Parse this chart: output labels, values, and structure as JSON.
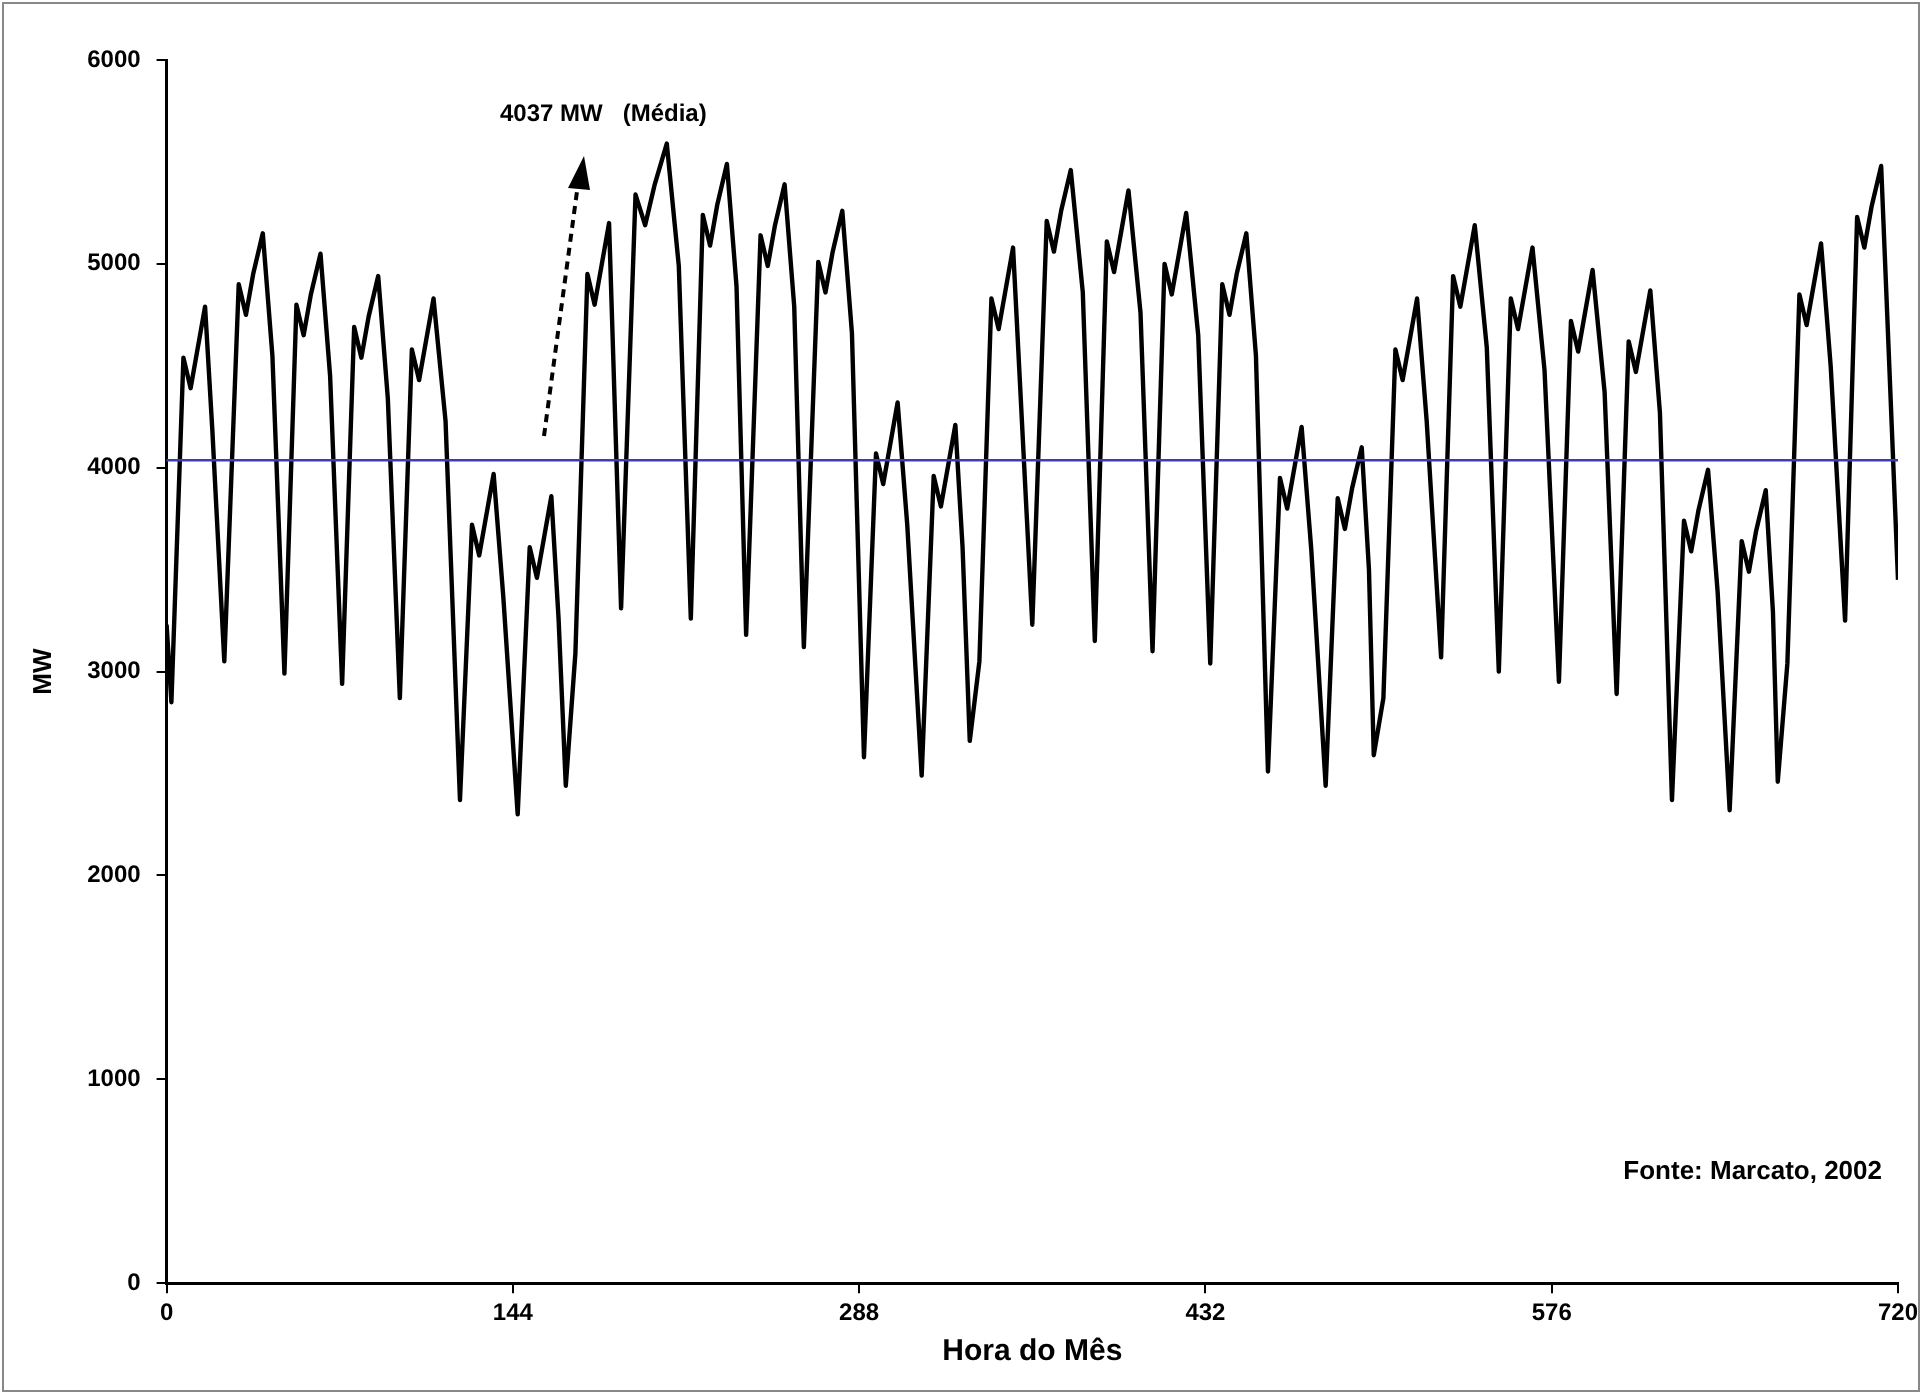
{
  "chart_data": {
    "type": "line",
    "xlabel": "Hora do Mês",
    "ylabel": "MW",
    "xlim": [
      0,
      720
    ],
    "xticks": [
      0,
      144,
      288,
      432,
      576,
      720
    ],
    "ylim": [
      0,
      6000
    ],
    "yticks": [
      0,
      1000,
      2000,
      3000,
      4000,
      5000,
      6000
    ],
    "grid": false,
    "legend": false,
    "marker": "none",
    "line_style": "solid",
    "ref_lines": [
      {
        "axis": "y",
        "value": 4037,
        "color": "#3c3cb4"
      }
    ],
    "annotations": [
      "4037 MW   (Média)",
      "Fonte: Marcato, 2002"
    ],
    "series": [
      {
        "color": "#000000",
        "x": [
          0,
          2,
          7,
          10,
          13,
          16,
          19,
          24,
          30,
          33,
          36,
          40,
          44,
          49,
          54,
          57,
          60,
          64,
          68,
          73,
          78,
          81,
          84,
          88,
          92,
          97,
          102,
          105,
          108,
          111,
          116,
          122,
          127,
          130,
          133,
          136,
          140,
          146,
          151,
          154,
          157,
          160,
          163,
          166,
          170,
          175,
          178,
          181,
          184,
          189,
          195,
          199,
          203,
          208,
          213,
          218,
          223,
          226,
          229,
          233,
          237,
          241,
          247,
          250,
          253,
          257,
          261,
          265,
          271,
          274,
          277,
          281,
          285,
          290,
          295,
          298,
          301,
          304,
          308,
          314,
          319,
          322,
          325,
          328,
          331,
          334,
          338,
          343,
          346,
          349,
          352,
          360,
          366,
          369,
          372,
          376,
          381,
          386,
          391,
          394,
          397,
          400,
          405,
          410,
          415,
          418,
          421,
          424,
          429,
          434,
          439,
          442,
          445,
          449,
          453,
          458,
          463,
          466,
          469,
          472,
          476,
          482,
          487,
          490,
          493,
          497,
          500,
          502,
          506,
          511,
          514,
          517,
          520,
          524,
          530,
          535,
          538,
          541,
          544,
          549,
          554,
          559,
          562,
          565,
          568,
          573,
          579,
          584,
          587,
          590,
          593,
          598,
          603,
          608,
          611,
          614,
          617,
          621,
          626,
          631,
          634,
          637,
          641,
          645,
          650,
          655,
          658,
          661,
          665,
          668,
          670,
          674,
          679,
          682,
          685,
          688,
          692,
          698,
          703,
          706,
          709,
          713,
          720
        ],
        "values": [
          3230,
          2850,
          4540,
          4390,
          4590,
          4790,
          4190,
          3050,
          4900,
          4750,
          4950,
          5150,
          4550,
          2990,
          4800,
          4650,
          4850,
          5050,
          4450,
          2940,
          4690,
          4540,
          4740,
          4940,
          4340,
          2870,
          4580,
          4430,
          4630,
          4830,
          4230,
          2370,
          3720,
          3570,
          3770,
          3970,
          3370,
          2300,
          3610,
          3460,
          3660,
          3860,
          3260,
          2440,
          3090,
          4950,
          4800,
          5000,
          5200,
          3310,
          5340,
          5190,
          5390,
          5590,
          4990,
          3260,
          5240,
          5090,
          5290,
          5490,
          4890,
          3180,
          5140,
          4990,
          5190,
          5390,
          4790,
          3120,
          5010,
          4860,
          5060,
          5260,
          4660,
          2580,
          4070,
          3920,
          4120,
          4320,
          3720,
          2490,
          3960,
          3810,
          4010,
          4210,
          3610,
          2660,
          3050,
          4830,
          4680,
          4880,
          5080,
          3230,
          5210,
          5060,
          5260,
          5460,
          4860,
          3150,
          5110,
          4960,
          5160,
          5360,
          4760,
          3100,
          5000,
          4850,
          5050,
          5250,
          4650,
          3040,
          4900,
          4750,
          4950,
          5150,
          4550,
          2510,
          3950,
          3800,
          4000,
          4200,
          3600,
          2440,
          3850,
          3700,
          3900,
          4100,
          3500,
          2590,
          2870,
          4580,
          4430,
          4630,
          4830,
          4230,
          3070,
          4940,
          4790,
          4990,
          5190,
          4590,
          3000,
          4830,
          4680,
          4880,
          5080,
          4480,
          2950,
          4720,
          4570,
          4770,
          4970,
          4370,
          2890,
          4620,
          4470,
          4670,
          4870,
          4270,
          2370,
          3740,
          3590,
          3790,
          3990,
          3390,
          2320,
          3640,
          3490,
          3690,
          3890,
          3290,
          2460,
          3040,
          4850,
          4700,
          4900,
          5100,
          4500,
          3250,
          5230,
          5080,
          5280,
          5480,
          3450
        ]
      }
    ]
  }
}
